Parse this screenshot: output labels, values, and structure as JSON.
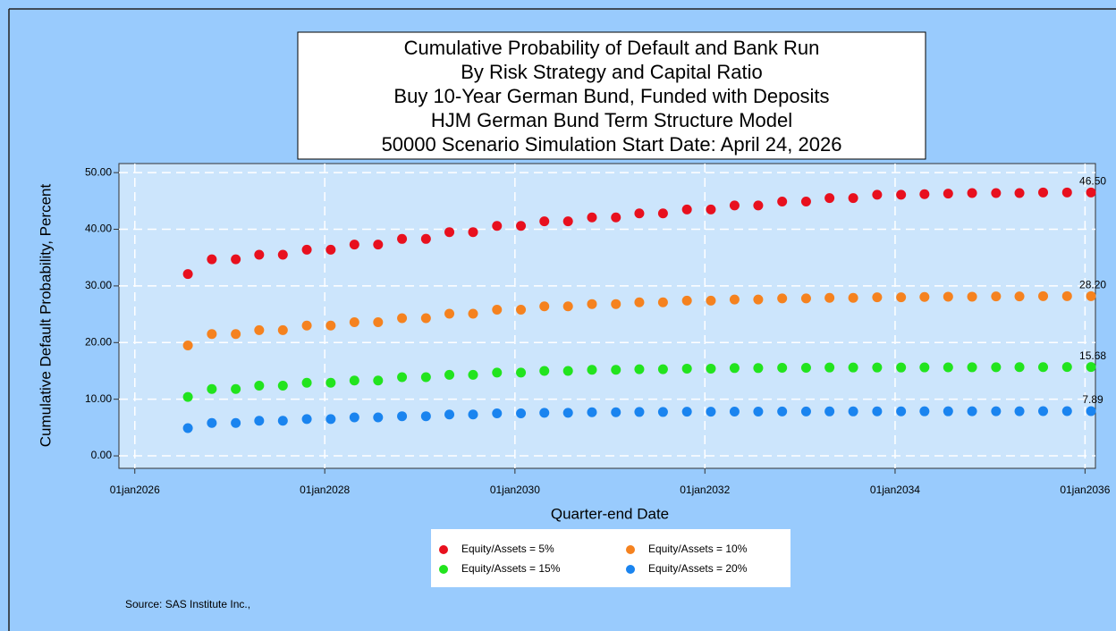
{
  "chart_data": {
    "type": "scatter",
    "title": [
      "Cumulative Probability of Default and Bank Run",
      "By Risk Strategy and Capital Ratio",
      "Buy 10-Year German Bund, Funded with Deposits",
      "HJM German Bund Term Structure Model",
      "50000 Scenario Simulation Start Date: April 24, 2026"
    ],
    "x_label": "Quarter-end Date",
    "y_label": "Cumulative Default Probability, Percent",
    "source": "Source: SAS Institute Inc.,",
    "x": [
      "2026-07-24",
      "2026-10-24",
      "2027-01-24",
      "2027-04-24",
      "2027-07-24",
      "2027-10-24",
      "2028-01-24",
      "2028-04-24",
      "2028-07-24",
      "2028-10-24",
      "2029-01-24",
      "2029-04-24",
      "2029-07-24",
      "2029-10-24",
      "2030-01-24",
      "2030-04-24",
      "2030-07-24",
      "2030-10-24",
      "2031-01-24",
      "2031-04-24",
      "2031-07-24",
      "2031-10-24",
      "2032-01-24",
      "2032-04-24",
      "2032-07-24",
      "2032-10-24",
      "2033-01-24",
      "2033-04-24",
      "2033-07-24",
      "2033-10-24",
      "2034-01-24",
      "2034-04-24",
      "2034-07-24",
      "2034-10-24",
      "2035-01-24",
      "2035-04-24",
      "2035-07-24",
      "2035-10-24",
      "2036-01-24"
    ],
    "xlim": [
      "2025-11-01",
      "2036-02-10"
    ],
    "xticks": [
      {
        "value": "2026-01-01",
        "label": "01jan2026"
      },
      {
        "value": "2028-01-01",
        "label": "01jan2028"
      },
      {
        "value": "2030-01-01",
        "label": "01jan2030"
      },
      {
        "value": "2032-01-01",
        "label": "01jan2032"
      },
      {
        "value": "2034-01-01",
        "label": "01jan2034"
      },
      {
        "value": "2036-01-01",
        "label": "01jan2036"
      }
    ],
    "ylim": [
      -2.2,
      51.6
    ],
    "yticks": [
      {
        "value": 0,
        "label": "0.00"
      },
      {
        "value": 10,
        "label": "10.00"
      },
      {
        "value": 20,
        "label": "20.00"
      },
      {
        "value": 30,
        "label": "30.00"
      },
      {
        "value": 40,
        "label": "40.00"
      },
      {
        "value": 50,
        "label": "50.00"
      }
    ],
    "grid": true,
    "series": [
      {
        "name": "Equity/Assets = 5%",
        "color": "#e8101e",
        "values": [
          32.1,
          34.7,
          34.7,
          35.5,
          35.5,
          36.4,
          36.4,
          37.3,
          37.3,
          38.3,
          38.3,
          39.5,
          39.5,
          40.6,
          40.6,
          41.4,
          41.4,
          42.1,
          42.1,
          42.8,
          42.8,
          43.5,
          43.5,
          44.2,
          44.2,
          44.9,
          44.9,
          45.5,
          45.5,
          46.1,
          46.1,
          46.2,
          46.3,
          46.4,
          46.4,
          46.4,
          46.5,
          46.5,
          46.5
        ],
        "value_labels": [
          null,
          null,
          null,
          null,
          null,
          null,
          null,
          null,
          null,
          null,
          null,
          null,
          null,
          null,
          null,
          null,
          null,
          null,
          null,
          null,
          null,
          null,
          null,
          null,
          null,
          null,
          null,
          null,
          null,
          null,
          null,
          null,
          null,
          null,
          null,
          null,
          null,
          null,
          "46.50"
        ]
      },
      {
        "name": "Equity/Assets = 10%",
        "color": "#f5821f",
        "values": [
          19.5,
          21.5,
          21.5,
          22.2,
          22.2,
          23.0,
          23.0,
          23.6,
          23.6,
          24.3,
          24.3,
          25.1,
          25.1,
          25.8,
          25.8,
          26.4,
          26.4,
          26.8,
          26.8,
          27.1,
          27.1,
          27.4,
          27.4,
          27.6,
          27.6,
          27.8,
          27.8,
          27.9,
          27.9,
          28.0,
          28.0,
          28.05,
          28.1,
          28.1,
          28.15,
          28.15,
          28.2,
          28.2,
          28.2
        ],
        "value_labels": [
          null,
          null,
          null,
          null,
          null,
          null,
          null,
          null,
          null,
          null,
          null,
          null,
          null,
          null,
          null,
          null,
          null,
          null,
          null,
          null,
          null,
          null,
          null,
          null,
          null,
          null,
          null,
          null,
          null,
          null,
          null,
          null,
          null,
          null,
          null,
          null,
          null,
          null,
          "28.20"
        ]
      },
      {
        "name": "Equity/Assets = 15%",
        "color": "#22e41e",
        "values": [
          10.4,
          11.8,
          11.8,
          12.4,
          12.4,
          12.9,
          12.9,
          13.3,
          13.3,
          13.9,
          13.9,
          14.3,
          14.3,
          14.7,
          14.7,
          15.0,
          15.0,
          15.2,
          15.2,
          15.3,
          15.3,
          15.4,
          15.4,
          15.5,
          15.5,
          15.55,
          15.55,
          15.6,
          15.6,
          15.6,
          15.6,
          15.62,
          15.63,
          15.64,
          15.65,
          15.66,
          15.67,
          15.68,
          15.68
        ],
        "value_labels": [
          null,
          null,
          null,
          null,
          null,
          null,
          null,
          null,
          null,
          null,
          null,
          null,
          null,
          null,
          null,
          null,
          null,
          null,
          null,
          null,
          null,
          null,
          null,
          null,
          null,
          null,
          null,
          null,
          null,
          null,
          null,
          null,
          null,
          null,
          null,
          null,
          null,
          null,
          "15.68"
        ]
      },
      {
        "name": "Equity/Assets = 20%",
        "color": "#1a84ef",
        "values": [
          4.9,
          5.8,
          5.8,
          6.2,
          6.2,
          6.5,
          6.5,
          6.8,
          6.8,
          7.0,
          7.0,
          7.3,
          7.3,
          7.5,
          7.5,
          7.6,
          7.6,
          7.7,
          7.7,
          7.75,
          7.75,
          7.8,
          7.8,
          7.82,
          7.82,
          7.84,
          7.84,
          7.85,
          7.85,
          7.86,
          7.86,
          7.87,
          7.87,
          7.88,
          7.88,
          7.88,
          7.89,
          7.89,
          7.89
        ],
        "value_labels": [
          null,
          null,
          null,
          null,
          null,
          null,
          null,
          null,
          null,
          null,
          null,
          null,
          null,
          null,
          null,
          null,
          null,
          null,
          null,
          null,
          null,
          null,
          null,
          null,
          null,
          null,
          null,
          null,
          null,
          null,
          null,
          null,
          null,
          null,
          null,
          null,
          null,
          null,
          "7.89"
        ]
      }
    ]
  }
}
